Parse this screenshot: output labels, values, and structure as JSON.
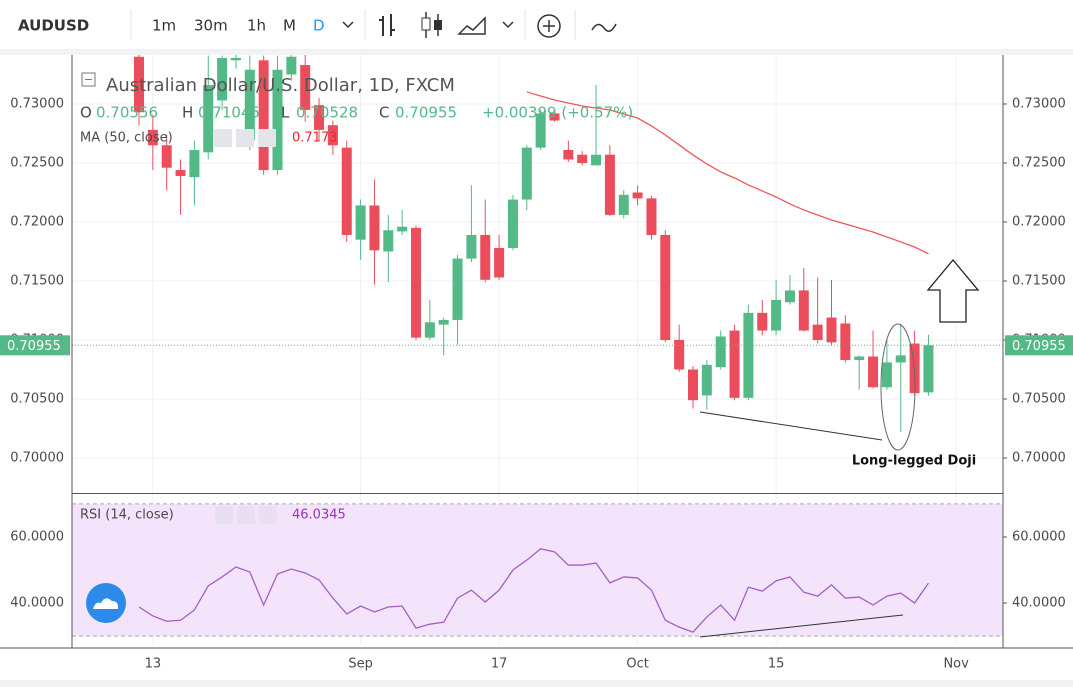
{
  "toolbar": {
    "symbol": "AUDUSD",
    "intervals": [
      "1m",
      "30m",
      "1h",
      "M",
      "D"
    ]
  },
  "chart_data": [
    {
      "type": "candlestick",
      "title": "Australian Dollar/U.S. Dollar, 1D, FXCM",
      "ohlc_labels": [
        "O",
        "H",
        "L",
        "C"
      ],
      "change": "+0.00399 (+0.57%)",
      "annotation": "Long-legged Doji",
      "up_color": "#53b987",
      "down_color": "#eb4d5c",
      "categories": [
        null,
        "13",
        null,
        null,
        null,
        null,
        null,
        null,
        null,
        null,
        null,
        null,
        null,
        null,
        null,
        null,
        "Sep",
        null,
        null,
        null,
        null,
        null,
        null,
        null,
        null,
        null,
        "17",
        null,
        null,
        null,
        null,
        null,
        null,
        null,
        null,
        null,
        "Oct",
        null,
        null,
        null,
        null,
        null,
        null,
        null,
        null,
        null,
        "15",
        null,
        null,
        null,
        null,
        null,
        null,
        null,
        null,
        null,
        null,
        null,
        null,
        "Nov"
      ],
      "open": [
        0.734,
        0.7278,
        0.7265,
        0.7244,
        0.7238,
        0.7259,
        0.7303,
        0.7337,
        0.7269,
        0.7337,
        0.7244,
        0.7325,
        0.7333,
        0.7299,
        0.7282,
        0.7263,
        0.7185,
        0.7214,
        0.7175,
        0.7192,
        0.7195,
        0.7102,
        0.7113,
        0.7117,
        0.7169,
        0.7189,
        0.7178,
        0.7178,
        0.7219,
        0.7263,
        0.7292,
        0.7261,
        0.7257,
        0.7248,
        0.7257,
        0.7206,
        0.7225,
        0.722,
        0.7189,
        0.71,
        0.7075,
        0.7053,
        0.7077,
        0.7108,
        0.7051,
        0.7123,
        0.7108,
        0.7132,
        0.7142,
        0.7113,
        0.7119,
        0.7114,
        0.7083,
        0.7086,
        0.706,
        0.7081,
        0.7097,
        0.70556,
        null,
        null
      ],
      "high": [
        0.735,
        0.7291,
        0.7274,
        0.7253,
        0.7269,
        0.7341,
        0.7341,
        0.7345,
        0.7341,
        0.7341,
        0.7341,
        0.7342,
        0.7342,
        0.7305,
        0.7286,
        0.7269,
        0.7219,
        0.7236,
        0.7206,
        0.721,
        0.7197,
        0.7134,
        0.7119,
        0.7172,
        0.7231,
        0.7219,
        0.7189,
        0.7223,
        0.7265,
        0.7295,
        0.7295,
        0.7269,
        0.726,
        0.7316,
        0.7265,
        0.7227,
        0.7231,
        0.7222,
        0.7193,
        0.7113,
        0.7078,
        0.7083,
        0.7108,
        0.7113,
        0.713,
        0.7134,
        0.7151,
        0.7155,
        0.7161,
        0.7153,
        0.7151,
        0.7121,
        0.7087,
        0.7108,
        0.71,
        0.7113,
        0.7108,
        0.71045,
        null,
        null
      ],
      "low": [
        0.7282,
        0.7244,
        0.7227,
        0.7206,
        0.7214,
        0.7253,
        0.7295,
        0.733,
        0.7261,
        0.724,
        0.724,
        0.732,
        0.7285,
        0.7269,
        0.7257,
        0.7183,
        0.7168,
        0.7147,
        0.7149,
        0.7189,
        0.71,
        0.71,
        0.7087,
        0.7096,
        0.7166,
        0.7149,
        0.7151,
        0.7176,
        0.721,
        0.7261,
        0.7285,
        0.7251,
        0.7248,
        0.7248,
        0.7205,
        0.7203,
        0.7214,
        0.7185,
        0.7098,
        0.7073,
        0.7042,
        0.7041,
        0.7075,
        0.7049,
        0.7049,
        0.7104,
        0.7104,
        0.713,
        0.7107,
        0.7097,
        0.7096,
        0.7081,
        0.7058,
        0.7059,
        0.7058,
        0.7022,
        0.7053,
        0.70528,
        null,
        null
      ],
      "close": [
        0.7293,
        0.7265,
        0.7246,
        0.7239,
        0.7261,
        0.7316,
        0.7339,
        0.7339,
        0.7329,
        0.7244,
        0.7329,
        0.734,
        0.7295,
        0.7278,
        0.7265,
        0.7189,
        0.7214,
        0.7176,
        0.7193,
        0.7196,
        0.7102,
        0.7115,
        0.7117,
        0.7169,
        0.7189,
        0.7151,
        0.7153,
        0.7219,
        0.7263,
        0.7292,
        0.7286,
        0.7253,
        0.725,
        0.7257,
        0.7206,
        0.7223,
        0.722,
        0.7189,
        0.71,
        0.7075,
        0.7049,
        0.7079,
        0.7103,
        0.7051,
        0.7123,
        0.7108,
        0.7134,
        0.7142,
        0.7108,
        0.71,
        0.7098,
        0.7083,
        0.7086,
        0.706,
        0.7081,
        0.7087,
        0.7055,
        0.70955,
        null,
        null
      ],
      "ma": {
        "name": "MA (50, close)",
        "color": "#f0555a",
        "values": [
          null,
          null,
          null,
          null,
          null,
          null,
          null,
          null,
          null,
          null,
          null,
          null,
          null,
          null,
          null,
          null,
          null,
          null,
          null,
          null,
          null,
          null,
          null,
          null,
          null,
          null,
          null,
          null,
          0.73102,
          0.73068,
          0.73034,
          0.73008,
          0.72983,
          0.72966,
          0.72949,
          0.72915,
          0.72881,
          0.72814,
          0.72737,
          0.72653,
          0.72568,
          0.72492,
          0.72424,
          0.72373,
          0.72314,
          0.72263,
          0.72212,
          0.72153,
          0.72102,
          0.72059,
          0.72017,
          0.71983,
          0.71949,
          0.71915,
          0.71873,
          0.71831,
          0.71788,
          0.7173,
          null,
          null
        ]
      },
      "ylim": [
        0.69712,
        0.73415
      ],
      "yticks": [
        {
          "value": 0.7,
          "label": "0.70000"
        },
        {
          "value": 0.705,
          "label": "0.70500"
        },
        {
          "value": 0.71,
          "label": "0.71000"
        },
        {
          "value": 0.715,
          "label": "0.71500"
        },
        {
          "value": 0.72,
          "label": "0.72000"
        },
        {
          "value": 0.725,
          "label": "0.72500"
        },
        {
          "value": 0.73,
          "label": "0.73000"
        }
      ],
      "grid": true
    },
    {
      "type": "line",
      "series": [
        {
          "name": "RSI (14, close)",
          "color": "#a45fc2",
          "values": [
            38.8,
            36.1,
            34.5,
            34.8,
            37.9,
            45.2,
            47.9,
            50.9,
            49.4,
            39.4,
            48.8,
            50.3,
            49.1,
            47.0,
            41.5,
            36.7,
            39.1,
            37.3,
            38.8,
            39.1,
            32.4,
            33.6,
            34.2,
            41.5,
            43.9,
            40.3,
            43.9,
            50.0,
            53.0,
            56.4,
            55.5,
            51.5,
            51.5,
            52.1,
            46.1,
            47.9,
            47.6,
            43.9,
            34.8,
            32.7,
            31.2,
            35.8,
            39.4,
            34.8,
            44.8,
            43.6,
            46.7,
            47.9,
            43.3,
            42.1,
            45.5,
            41.5,
            41.8,
            39.4,
            42.1,
            43.0,
            40.0,
            46.0345,
            null,
            null
          ]
        }
      ],
      "band": [
        30,
        70
      ],
      "band_color": "#f3e4fc",
      "ylim": [
        27.3,
        72.7
      ],
      "yticks": [
        {
          "value": 40,
          "label": "40.0000"
        },
        {
          "value": 60,
          "label": "60.0000"
        }
      ]
    }
  ]
}
